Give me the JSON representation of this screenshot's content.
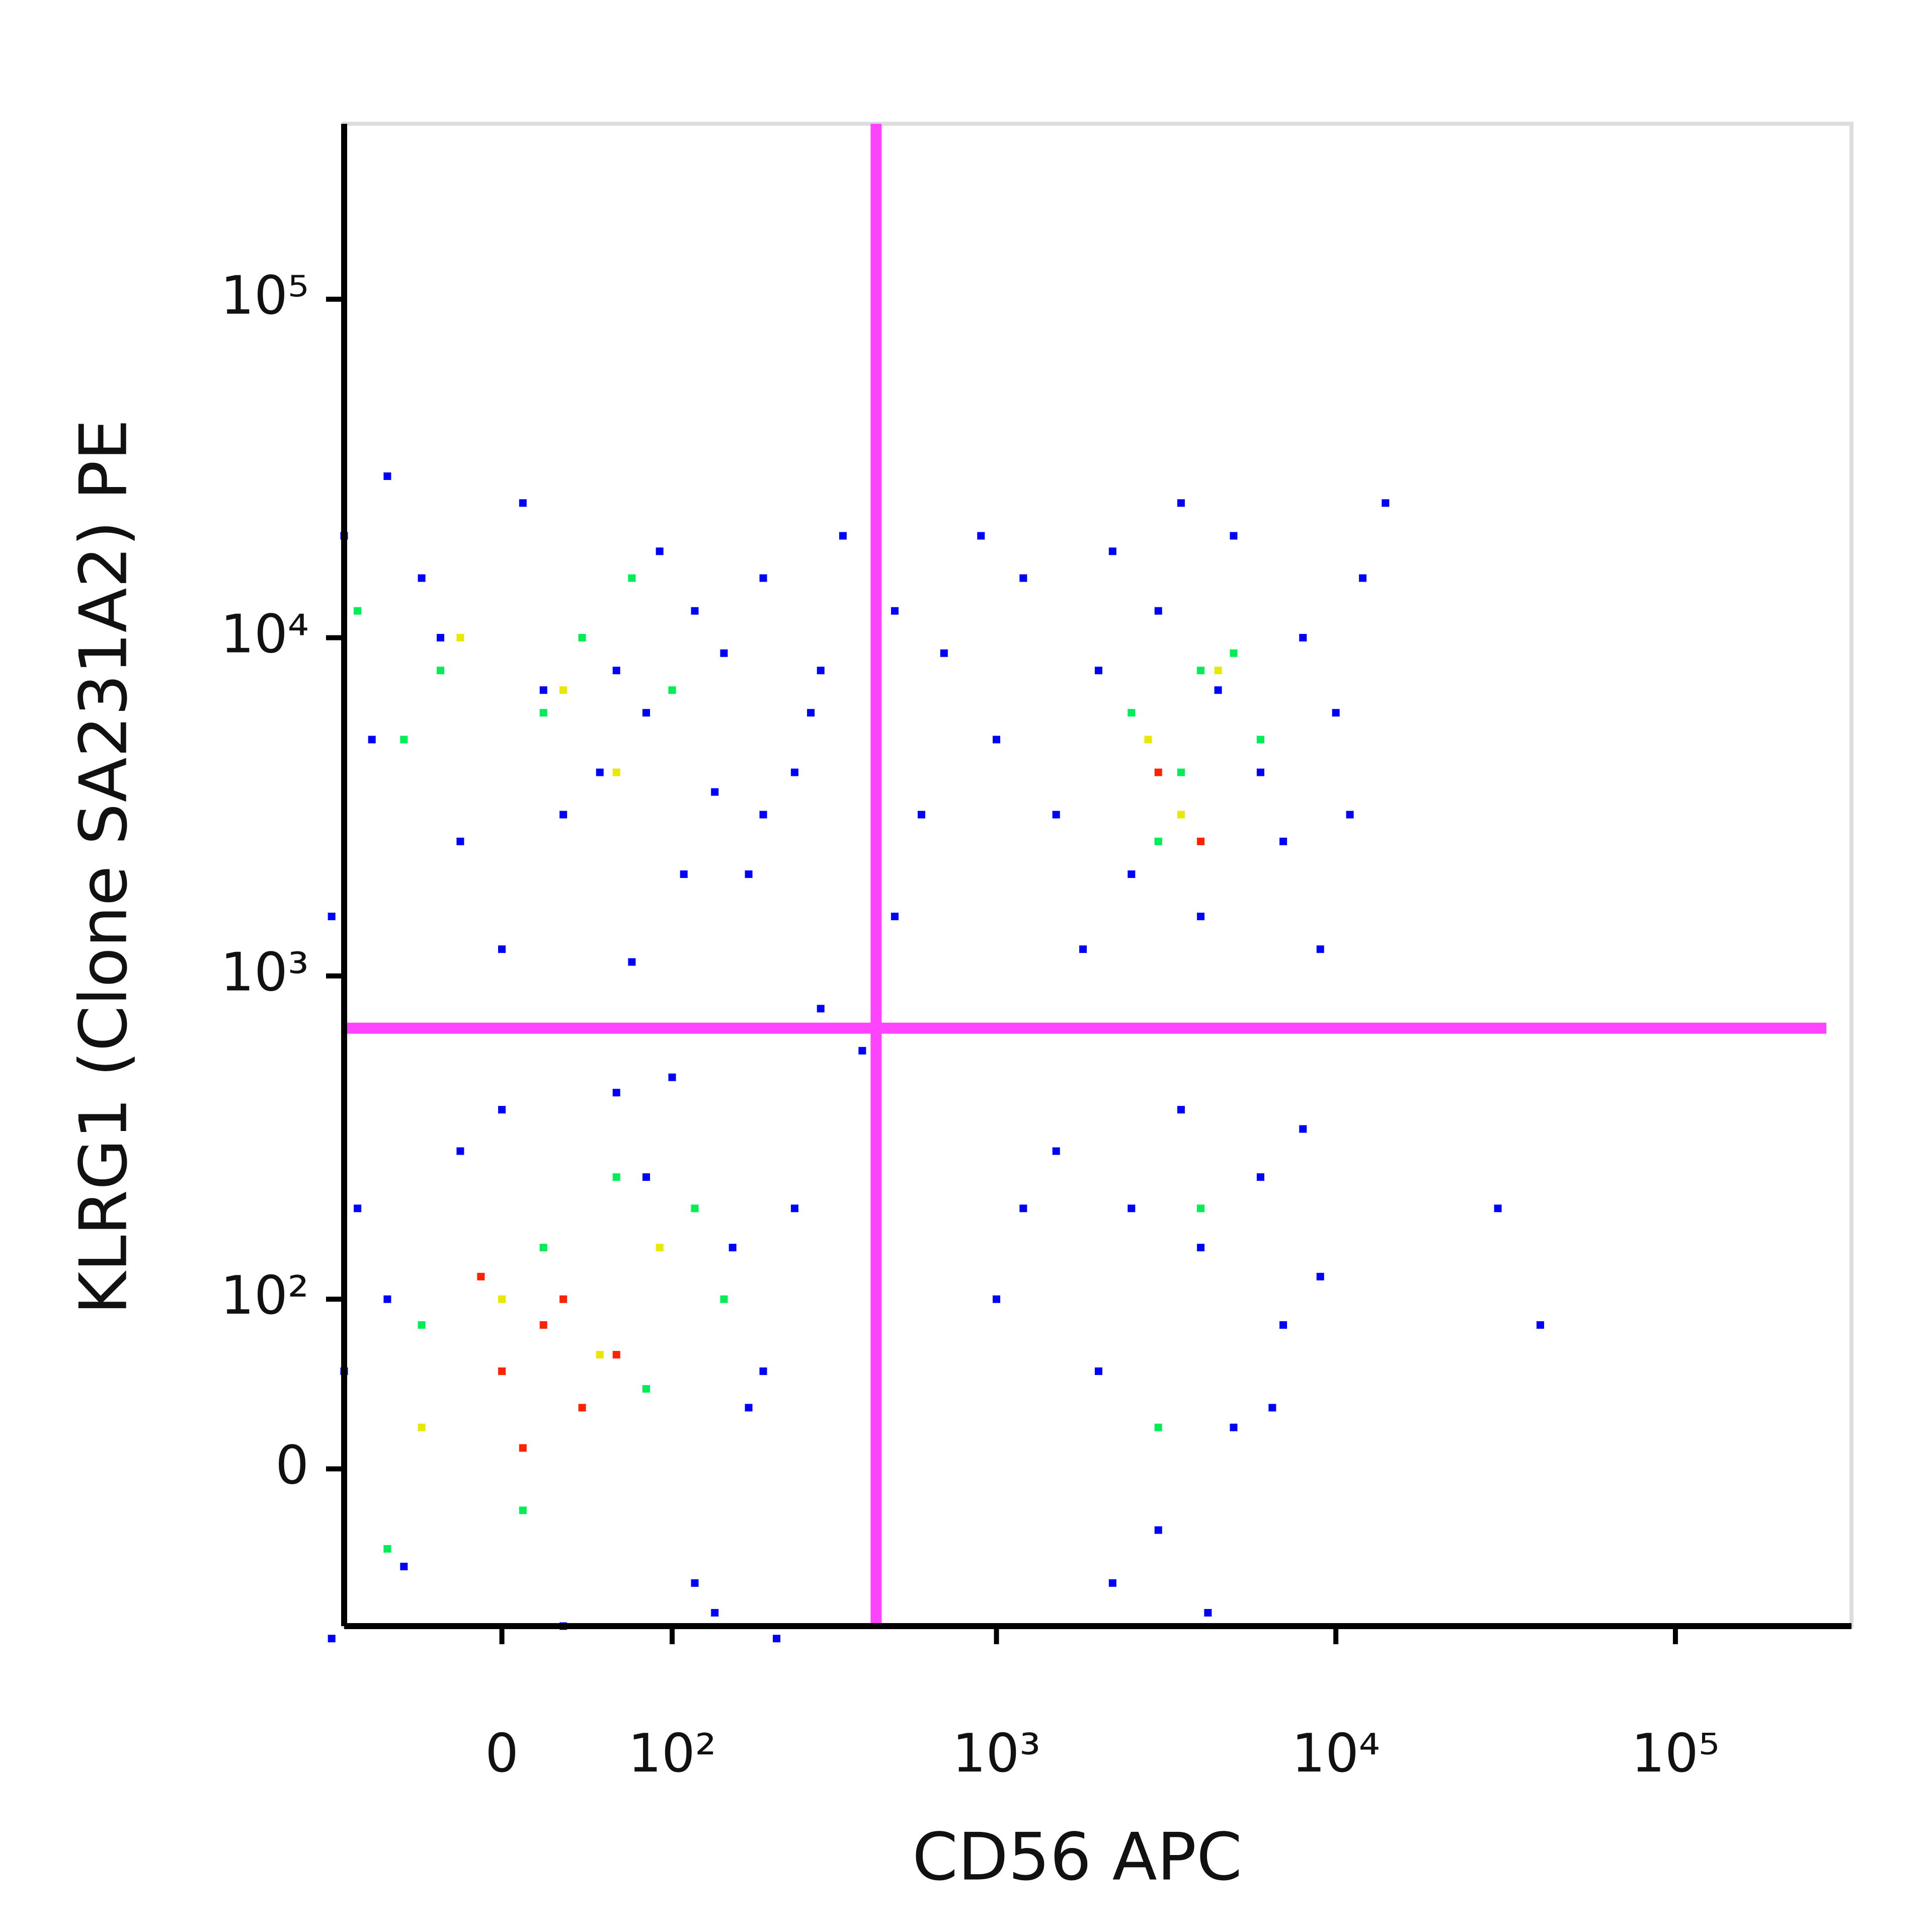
{
  "chart_data": {
    "type": "scatter",
    "xlabel": "CD56 APC",
    "ylabel": "KLRG1 (Clone SA231A2) PE",
    "xscale": "asinh",
    "yscale": "asinh",
    "xlim": [
      -90,
      330000
    ],
    "ylim": [
      -90,
      330000
    ],
    "xticks": [
      0,
      {
        "value": 100,
        "label": "10²"
      },
      {
        "value": 1000,
        "label": "10³"
      },
      {
        "value": 10000,
        "label": "10⁴"
      },
      {
        "value": 100000,
        "label": "10⁵"
      }
    ],
    "yticks": [
      0,
      {
        "value": 100,
        "label": "10²"
      },
      {
        "value": 1000,
        "label": "10³"
      },
      {
        "value": 10000,
        "label": "10⁴"
      },
      {
        "value": 100000,
        "label": "10⁵"
      }
    ],
    "x_gate": 440,
    "y_gate": 700,
    "gate_color": "#ff44ff",
    "series": [
      {
        "color": "#0000ff",
        "x": [
          -90,
          -40,
          10,
          60,
          120,
          -70,
          30,
          90,
          -20,
          80,
          150,
          -100,
          0,
          50,
          110,
          -60,
          20,
          140,
          70,
          -30,
          200,
          300,
          250,
          350,
          180,
          280,
          500,
          700,
          900,
          600,
          1000,
          1500,
          2000,
          2500,
          3000,
          4000,
          5000,
          6000,
          8000,
          10000,
          12000,
          1200,
          1800,
          3500,
          7000,
          9000,
          2200,
          4500,
          11000,
          14000,
          1000,
          1500,
          2000,
          2500,
          3000,
          3500,
          4000,
          5000,
          6000,
          7000,
          8000,
          9000,
          2200,
          4200,
          6500,
          1200,
          30000,
          40000,
          -100,
          -80,
          -50,
          -20,
          30,
          80,
          120,
          160,
          200,
          250,
          -90,
          0,
          60,
          140,
          220,
          -60,
          100,
          180,
          300,
          500,
          400,
          200
        ],
        "values": [
          20000,
          15000,
          25000,
          8000,
          12000,
          5000,
          3000,
          18000,
          2500,
          6000,
          9000,
          1500,
          1200,
          4000,
          2000,
          30000,
          7000,
          3500,
          1100,
          10000,
          15000,
          8000,
          4000,
          20000,
          2000,
          6000,
          12000,
          9000,
          20000,
          3000,
          5000,
          3000,
          8000,
          2000,
          12000,
          1500,
          20000,
          4000,
          10000,
          6000,
          15000,
          15000,
          1200,
          25000,
          2500,
          1200,
          18000,
          7000,
          3000,
          25000,
          100,
          300,
          50,
          200,
          -30,
          400,
          150,
          20,
          250,
          80,
          350,
          120,
          -60,
          -80,
          30,
          200,
          200,
          80,
          -100,
          200,
          -50,
          300,
          -90,
          250,
          -60,
          150,
          50,
          200,
          50,
          400,
          450,
          -80,
          -100,
          100,
          500,
          30,
          800,
          1500,
          600,
          3000
        ]
      },
      {
        "color": "#00ee55",
        "x": [
          -80,
          -30,
          20,
          70,
          -50,
          40,
          100,
          2500,
          3500,
          5000,
          3000,
          4000,
          6000,
          -40,
          20,
          80,
          120,
          -60,
          10,
          60,
          150,
          4000,
          3000
        ],
        "values": [
          12000,
          8000,
          6000,
          15000,
          5000,
          10000,
          7000,
          6000,
          4000,
          9000,
          2500,
          8000,
          5000,
          80,
          150,
          40,
          200,
          -40,
          -20,
          250,
          100,
          200,
          20
        ]
      },
      {
        "color": "#e8e800",
        "x": [
          -20,
          30,
          60,
          2800,
          3500,
          4500,
          0,
          50,
          -40,
          90
        ],
        "values": [
          10000,
          7000,
          4000,
          5000,
          3000,
          8000,
          100,
          60,
          20,
          150
        ]
      },
      {
        "color": "#ff2200",
        "x": [
          0,
          20,
          40,
          -10,
          30,
          60,
          10,
          3000,
          4000
        ],
        "values": [
          50,
          80,
          30,
          120,
          100,
          60,
          10,
          4000,
          2500
        ]
      }
    ]
  }
}
